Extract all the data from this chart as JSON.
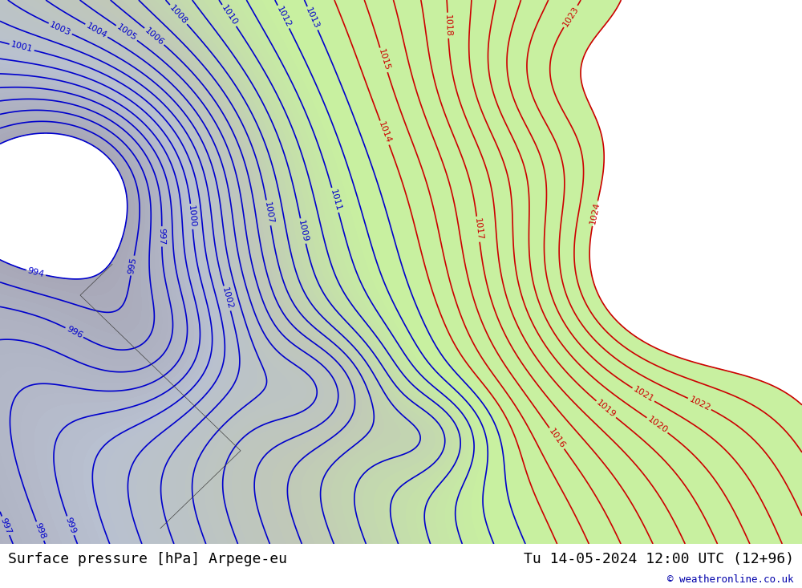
{
  "title_left": "Surface pressure [hPa] Arpege-eu",
  "title_right": "Tu 14-05-2024 12:00 UTC (12+96)",
  "credit": "© weatheronline.co.uk",
  "bg_color_land_green": "#c8f0a0",
  "bg_color_land_gray": "#d8d8d8",
  "bg_color_sea": "#c8e8f8",
  "isobar_color_blue": "#0000cc",
  "isobar_color_red": "#cc0000",
  "label_color_blue": "#0000cc",
  "label_color_red": "#cc0000",
  "bottom_bar_color": "#e8e8e8",
  "bottom_text_color": "#000000",
  "credit_color": "#0000aa",
  "figsize": [
    10.0,
    7.33
  ],
  "dpi": 100,
  "bottom_bar_height": 0.075
}
